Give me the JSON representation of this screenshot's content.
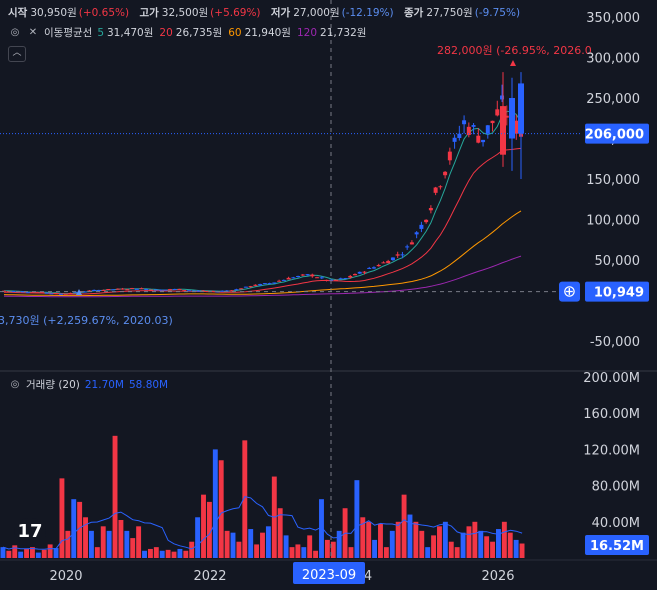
{
  "ohlc": {
    "open_label": "시작",
    "open_value": "30,950원",
    "open_pct": "(+0.65%)",
    "high_label": "고가",
    "high_value": "32,500원",
    "high_pct": "(+5.69%)",
    "low_label": "저가",
    "low_value": "27,000원",
    "low_pct": "(-12.19%)",
    "close_label": "종가",
    "close_value": "27,750원",
    "close_pct": "(-9.75%)"
  },
  "ma": {
    "name": "이동평균선",
    "items": [
      {
        "period": "5",
        "value": "31,470원",
        "color": "#26a69a"
      },
      {
        "period": "20",
        "value": "26,735원",
        "color": "#f23645"
      },
      {
        "period": "60",
        "value": "21,940원",
        "color": "#ff9800"
      },
      {
        "period": "120",
        "value": "21,732원",
        "color": "#9c27b0"
      }
    ]
  },
  "volume_legend": {
    "name": "거래량 (20)",
    "v1": "21.70M",
    "v2": "58.80M"
  },
  "logo_icon": "tradingview-logo-icon",
  "chart_data": {
    "type": "candlestick",
    "price_axis": {
      "ticks": [
        "350,000",
        "300,000",
        "250,000",
        "200,000",
        "150,000",
        "100,000",
        "50,000",
        "-50,000"
      ],
      "range": [
        -60000,
        360000
      ]
    },
    "volume_axis": {
      "ticks": [
        "200.00M",
        "160.00M",
        "120.00M",
        "80.00M",
        "40.00M"
      ],
      "range": [
        0,
        200
      ]
    },
    "x_ticks": [
      "2020",
      "2022",
      "4",
      "2026"
    ],
    "crosshair_label": "2023-09",
    "last_price_label": "206,000",
    "crosshair_price_label": "10,949",
    "last_volume_label": "16.52M",
    "max_annotation": "282,000원 (-26.95%, 2026.0",
    "min_annotation": "3,730원 (+2,259.67%, 2020.03)",
    "colors": {
      "up": "#f23645",
      "down": "#2962ff",
      "ma5": "#26a69a",
      "ma20": "#f23645",
      "ma60": "#ff9800",
      "ma120": "#9c27b0",
      "vol_ma": "#2962ff"
    },
    "price_series": [
      {
        "v": 12000,
        "t": "2019.05"
      },
      {
        "v": 11000,
        "t": "2019.08"
      },
      {
        "v": 10000,
        "t": "2019.11"
      },
      {
        "v": 8000,
        "t": "2020.03"
      },
      {
        "v": 11000,
        "t": "2020.06"
      },
      {
        "v": 13000,
        "t": "2020.09"
      },
      {
        "v": 14000,
        "t": "2020.12"
      },
      {
        "v": 15000,
        "t": "2021.03"
      },
      {
        "v": 13000,
        "t": "2021.06"
      },
      {
        "v": 14000,
        "t": "2021.09"
      },
      {
        "v": 12000,
        "t": "2021.12"
      },
      {
        "v": 11000,
        "t": "2022.03"
      },
      {
        "v": 13000,
        "t": "2022.06"
      },
      {
        "v": 18000,
        "t": "2022.09"
      },
      {
        "v": 22000,
        "t": "2022.12"
      },
      {
        "v": 28000,
        "t": "2023.03"
      },
      {
        "v": 32000,
        "t": "2023.06"
      },
      {
        "v": 24000,
        "t": "2023.09"
      },
      {
        "v": 28000,
        "t": "2023.12"
      },
      {
        "v": 38000,
        "t": "2024.03"
      },
      {
        "v": 48000,
        "t": "2024.06"
      },
      {
        "v": 62000,
        "t": "2024.09"
      },
      {
        "v": 100000,
        "t": "2024.12"
      },
      {
        "v": 160000,
        "t": "2025.03"
      },
      {
        "v": 220000,
        "t": "2025.06"
      },
      {
        "v": 200000,
        "t": "2025.09"
      },
      {
        "v": 240000,
        "t": "2025.12"
      },
      {
        "v": 206000,
        "t": "2026.01"
      }
    ],
    "volume_series_M": [
      12,
      8,
      14,
      7,
      10,
      12,
      6,
      9,
      15,
      11,
      88,
      30,
      65,
      62,
      45,
      30,
      12,
      35,
      30,
      135,
      42,
      30,
      22,
      35,
      8,
      10,
      12,
      8,
      9,
      7,
      10,
      8,
      18,
      45,
      70,
      62,
      120,
      108,
      30,
      28,
      18,
      130,
      32,
      15,
      28,
      35,
      90,
      55,
      25,
      12,
      15,
      12,
      25,
      8,
      65,
      20,
      18,
      30,
      55,
      12,
      86,
      45,
      40,
      20,
      38,
      12,
      30,
      40,
      70,
      48,
      40,
      30,
      12,
      25,
      35,
      40,
      18,
      12,
      28,
      35,
      40,
      30,
      24,
      18,
      32,
      40,
      28,
      20,
      16
    ]
  }
}
